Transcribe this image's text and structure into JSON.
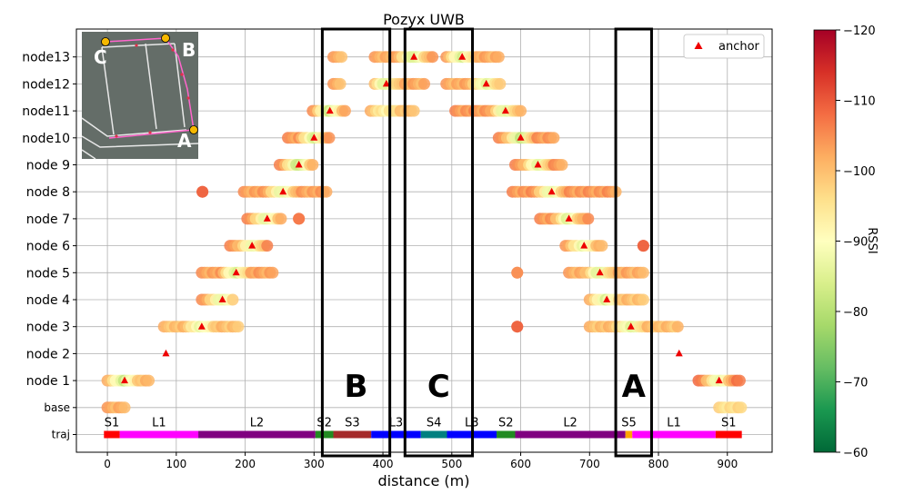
{
  "chart_data": {
    "type": "scatter",
    "title": "Pozyx UWB",
    "xlabel": "distance (m)",
    "ylabel": "",
    "xlim": [
      -45,
      965
    ],
    "x_ticks": [
      0,
      100,
      200,
      300,
      400,
      500,
      600,
      700,
      800,
      900
    ],
    "y_labels": [
      "traj",
      "base",
      "node 1",
      "node 2",
      "node 3",
      "node 4",
      "node 5",
      "node 6",
      "node 7",
      "node 8",
      "node 9",
      "node10",
      "node11",
      "node12",
      "node13"
    ],
    "grid": true,
    "legend": {
      "label": "anchor",
      "placement": "top-right"
    },
    "colorbar": {
      "label": "RSSI",
      "ticks": [
        -120,
        -110,
        -100,
        -90,
        -80,
        -70,
        -60
      ],
      "min": -120,
      "max": -60,
      "colors": [
        "#a50026",
        "#d73027",
        "#f46d43",
        "#fdae61",
        "#fee08b",
        "#ffffbf",
        "#d9ef8b",
        "#a6d96a",
        "#66bd63",
        "#1a9850",
        "#006837"
      ]
    },
    "anchors": [
      {
        "row": "node 1",
        "x": 25
      },
      {
        "row": "node 1",
        "x": 888
      },
      {
        "row": "node 2",
        "x": 85
      },
      {
        "row": "node 2",
        "x": 830
      },
      {
        "row": "node 3",
        "x": 137
      },
      {
        "row": "node 3",
        "x": 760
      },
      {
        "row": "node 4",
        "x": 167
      },
      {
        "row": "node 4",
        "x": 725
      },
      {
        "row": "node 5",
        "x": 187
      },
      {
        "row": "node 5",
        "x": 715
      },
      {
        "row": "node 6",
        "x": 210
      },
      {
        "row": "node 6",
        "x": 692
      },
      {
        "row": "node 7",
        "x": 232
      },
      {
        "row": "node 7",
        "x": 670
      },
      {
        "row": "node 8",
        "x": 255
      },
      {
        "row": "node 8",
        "x": 645
      },
      {
        "row": "node 9",
        "x": 278
      },
      {
        "row": "node 9",
        "x": 625
      },
      {
        "row": "node10",
        "x": 300
      },
      {
        "row": "node10",
        "x": 600
      },
      {
        "row": "node11",
        "x": 323
      },
      {
        "row": "node11",
        "x": 578
      },
      {
        "row": "node12",
        "x": 405
      },
      {
        "row": "node12",
        "x": 550
      },
      {
        "row": "node13",
        "x": 445
      },
      {
        "row": "node13",
        "x": 515
      }
    ],
    "rssi_segments": [
      {
        "row": "base",
        "x0": 0,
        "x1": 25,
        "rssi": -102
      },
      {
        "row": "base",
        "x0": 888,
        "x1": 920,
        "rssi": -96
      },
      {
        "row": "node 1",
        "x0": 0,
        "x1": 60,
        "rssi": -100,
        "peak_x": 25,
        "peak_rssi": -82
      },
      {
        "row": "node 1",
        "x0": 858,
        "x1": 918,
        "rssi": -106,
        "peak_x": 888,
        "peak_rssi": -84
      },
      {
        "row": "node 3",
        "x0": 82,
        "x1": 190,
        "rssi": -100,
        "peak_x": 137,
        "peak_rssi": -86
      },
      {
        "row": "node 3",
        "x0": 700,
        "x1": 828,
        "rssi": -100,
        "peak_x": 760,
        "peak_rssi": -84
      },
      {
        "row": "node 3",
        "x0": 595,
        "x1": 595,
        "rssi": -108
      },
      {
        "row": "node 4",
        "x0": 137,
        "x1": 182,
        "rssi": -103,
        "peak_x": 167,
        "peak_rssi": -84
      },
      {
        "row": "node 4",
        "x0": 700,
        "x1": 778,
        "rssi": -100,
        "peak_x": 725,
        "peak_rssi": -84
      },
      {
        "row": "node 5",
        "x0": 137,
        "x1": 240,
        "rssi": -103,
        "peak_x": 187,
        "peak_rssi": -84
      },
      {
        "row": "node 5",
        "x0": 670,
        "x1": 778,
        "rssi": -102,
        "peak_x": 715,
        "peak_rssi": -84
      },
      {
        "row": "node 5",
        "x0": 595,
        "x1": 595,
        "rssi": -104
      },
      {
        "row": "node 6",
        "x0": 178,
        "x1": 232,
        "rssi": -104,
        "peak_x": 210,
        "peak_rssi": -86
      },
      {
        "row": "node 6",
        "x0": 665,
        "x1": 718,
        "rssi": -102,
        "peak_x": 692,
        "peak_rssi": -86
      },
      {
        "row": "node 6",
        "x0": 778,
        "x1": 778,
        "rssi": -108
      },
      {
        "row": "node 7",
        "x0": 203,
        "x1": 252,
        "rssi": -104,
        "peak_x": 232,
        "peak_rssi": -84
      },
      {
        "row": "node 7",
        "x0": 628,
        "x1": 698,
        "rssi": -104,
        "peak_x": 670,
        "peak_rssi": -84
      },
      {
        "row": "node 7",
        "x0": 278,
        "x1": 278,
        "rssi": -106
      },
      {
        "row": "node 8",
        "x0": 198,
        "x1": 318,
        "rssi": -103,
        "peak_x": 255,
        "peak_rssi": -84
      },
      {
        "row": "node 8",
        "x0": 588,
        "x1": 738,
        "rssi": -104,
        "peak_x": 645,
        "peak_rssi": -84
      },
      {
        "row": "node 8",
        "x0": 138,
        "x1": 138,
        "rssi": -108
      },
      {
        "row": "node 9",
        "x0": 250,
        "x1": 298,
        "rssi": -104,
        "peak_x": 278,
        "peak_rssi": -80
      },
      {
        "row": "node 9",
        "x0": 592,
        "x1": 660,
        "rssi": -104,
        "peak_x": 625,
        "peak_rssi": -84
      },
      {
        "row": "node10",
        "x0": 262,
        "x1": 322,
        "rssi": -104,
        "peak_x": 300,
        "peak_rssi": -84
      },
      {
        "row": "node10",
        "x0": 568,
        "x1": 648,
        "rssi": -104,
        "peak_x": 600,
        "peak_rssi": -80
      },
      {
        "row": "node11",
        "x0": 298,
        "x1": 345,
        "rssi": -103,
        "peak_x": 323,
        "peak_rssi": -82
      },
      {
        "row": "node11",
        "x0": 382,
        "x1": 445,
        "rssi": -100,
        "peak_x": 405,
        "peak_rssi": -92
      },
      {
        "row": "node11",
        "x0": 505,
        "x1": 600,
        "rssi": -104,
        "peak_x": 578,
        "peak_rssi": -84
      },
      {
        "row": "node12",
        "x0": 328,
        "x1": 338,
        "rssi": -102
      },
      {
        "row": "node12",
        "x0": 388,
        "x1": 460,
        "rssi": -102,
        "peak_x": 405,
        "peak_rssi": -84
      },
      {
        "row": "node12",
        "x0": 492,
        "x1": 570,
        "rssi": -102,
        "peak_x": 550,
        "peak_rssi": -84
      },
      {
        "row": "node13",
        "x0": 328,
        "x1": 340,
        "rssi": -102
      },
      {
        "row": "node13",
        "x0": 388,
        "x1": 472,
        "rssi": -102,
        "peak_x": 445,
        "peak_rssi": -82
      },
      {
        "row": "node13",
        "x0": 492,
        "x1": 568,
        "rssi": -102,
        "peak_x": 515,
        "peak_rssi": -84
      }
    ],
    "trajectory": [
      {
        "label": "S1",
        "x0": -5,
        "x1": 18,
        "color": "#ff0000"
      },
      {
        "label": "L1",
        "x0": 18,
        "x1": 132,
        "color": "#ff00ff"
      },
      {
        "label": "L2",
        "x0": 132,
        "x1": 302,
        "color": "#800080"
      },
      {
        "label": "S2",
        "x0": 302,
        "x1": 328,
        "color": "#228b22"
      },
      {
        "label": "S3",
        "x0": 328,
        "x1": 383,
        "color": "#a52a2a"
      },
      {
        "label": "L3",
        "x0": 383,
        "x1": 455,
        "color": "#0000ff"
      },
      {
        "label": "S4",
        "x0": 455,
        "x1": 493,
        "color": "#008080"
      },
      {
        "label": "L3",
        "x0": 493,
        "x1": 565,
        "color": "#0000ff"
      },
      {
        "label": "S2",
        "x0": 565,
        "x1": 592,
        "color": "#228b22"
      },
      {
        "label": "L2",
        "x0": 592,
        "x1": 752,
        "color": "#800080"
      },
      {
        "label": "S5",
        "x0": 752,
        "x1": 762,
        "color": "#ffa500"
      },
      {
        "label": "L1",
        "x0": 762,
        "x1": 883,
        "color": "#ff00ff"
      },
      {
        "label": "S1",
        "x0": 883,
        "x1": 921,
        "color": "#ff0000"
      }
    ],
    "annotations": [
      {
        "label": "B",
        "x0": 312,
        "x1": 410
      },
      {
        "label": "C",
        "x0": 432,
        "x1": 530
      },
      {
        "label": "A",
        "x0": 738,
        "x1": 790
      }
    ],
    "inset_map": {
      "corner_labels": [
        "C",
        "B",
        "A"
      ]
    }
  }
}
